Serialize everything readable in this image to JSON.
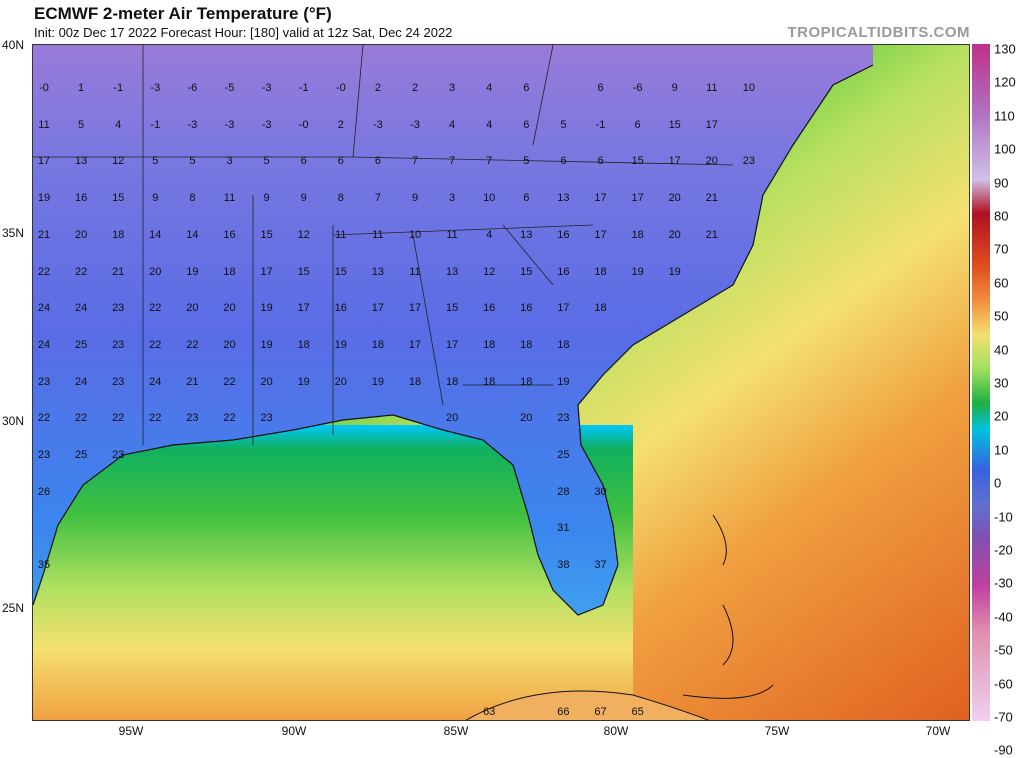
{
  "header": {
    "title": "ECMWF 2-meter Air Temperature (°F)",
    "subtitle": "Init: 00z Dec 17 2022   Forecast Hour: [180]   valid at 12z Sat, Dec 24 2022",
    "brand": "TROPICALTIDBITS.COM"
  },
  "axes": {
    "lat_labels": [
      "40N",
      "35N",
      "30N",
      "25N"
    ],
    "lon_labels": [
      "95W",
      "90W",
      "85W",
      "80W",
      "75W",
      "70W"
    ]
  },
  "colorbar": {
    "ticks": [
      "130",
      "120",
      "110",
      "100",
      "90",
      "80",
      "70",
      "60",
      "50",
      "40",
      "30",
      "20",
      "10",
      "0",
      "-10",
      "-20",
      "-30",
      "-40",
      "-50",
      "-60",
      "-70",
      "-90"
    ]
  },
  "temps": [
    {
      "t": "-0",
      "c": 0,
      "r": 0
    },
    {
      "t": "1",
      "c": 1,
      "r": 0
    },
    {
      "t": "-1",
      "c": 2,
      "r": 0
    },
    {
      "t": "-3",
      "c": 3,
      "r": 0
    },
    {
      "t": "-6",
      "c": 4,
      "r": 0
    },
    {
      "t": "-5",
      "c": 5,
      "r": 0
    },
    {
      "t": "-3",
      "c": 6,
      "r": 0
    },
    {
      "t": "-1",
      "c": 7,
      "r": 0
    },
    {
      "t": "-0",
      "c": 8,
      "r": 0
    },
    {
      "t": "2",
      "c": 9,
      "r": 0
    },
    {
      "t": "2",
      "c": 10,
      "r": 0
    },
    {
      "t": "3",
      "c": 11,
      "r": 0
    },
    {
      "t": "4",
      "c": 12,
      "r": 0
    },
    {
      "t": "6",
      "c": 13,
      "r": 0
    },
    {
      "t": "6",
      "c": 15,
      "r": 0
    },
    {
      "t": "-6",
      "c": 16,
      "r": 0
    },
    {
      "t": "9",
      "c": 17,
      "r": 0
    },
    {
      "t": "11",
      "c": 18,
      "r": 0
    },
    {
      "t": "10",
      "c": 19,
      "r": 0
    },
    {
      "t": "11",
      "c": 0,
      "r": 1
    },
    {
      "t": "5",
      "c": 1,
      "r": 1
    },
    {
      "t": "4",
      "c": 2,
      "r": 1
    },
    {
      "t": "-1",
      "c": 3,
      "r": 1
    },
    {
      "t": "-3",
      "c": 4,
      "r": 1
    },
    {
      "t": "-3",
      "c": 5,
      "r": 1
    },
    {
      "t": "-3",
      "c": 6,
      "r": 1
    },
    {
      "t": "-0",
      "c": 7,
      "r": 1
    },
    {
      "t": "2",
      "c": 8,
      "r": 1
    },
    {
      "t": "-3",
      "c": 9,
      "r": 1
    },
    {
      "t": "-3",
      "c": 10,
      "r": 1
    },
    {
      "t": "4",
      "c": 11,
      "r": 1
    },
    {
      "t": "4",
      "c": 12,
      "r": 1
    },
    {
      "t": "6",
      "c": 13,
      "r": 1
    },
    {
      "t": "5",
      "c": 14,
      "r": 1
    },
    {
      "t": "-1",
      "c": 15,
      "r": 1
    },
    {
      "t": "6",
      "c": 16,
      "r": 1
    },
    {
      "t": "15",
      "c": 17,
      "r": 1
    },
    {
      "t": "17",
      "c": 18,
      "r": 1
    },
    {
      "t": "17",
      "c": 0,
      "r": 2
    },
    {
      "t": "13",
      "c": 1,
      "r": 2
    },
    {
      "t": "12",
      "c": 2,
      "r": 2
    },
    {
      "t": "5",
      "c": 3,
      "r": 2
    },
    {
      "t": "5",
      "c": 4,
      "r": 2
    },
    {
      "t": "3",
      "c": 5,
      "r": 2
    },
    {
      "t": "5",
      "c": 6,
      "r": 2
    },
    {
      "t": "6",
      "c": 7,
      "r": 2
    },
    {
      "t": "6",
      "c": 8,
      "r": 2
    },
    {
      "t": "6",
      "c": 9,
      "r": 2
    },
    {
      "t": "7",
      "c": 10,
      "r": 2
    },
    {
      "t": "7",
      "c": 11,
      "r": 2
    },
    {
      "t": "7",
      "c": 12,
      "r": 2
    },
    {
      "t": "5",
      "c": 13,
      "r": 2
    },
    {
      "t": "6",
      "c": 14,
      "r": 2
    },
    {
      "t": "6",
      "c": 15,
      "r": 2
    },
    {
      "t": "15",
      "c": 16,
      "r": 2
    },
    {
      "t": "17",
      "c": 17,
      "r": 2
    },
    {
      "t": "20",
      "c": 18,
      "r": 2
    },
    {
      "t": "23",
      "c": 19,
      "r": 2
    },
    {
      "t": "19",
      "c": 0,
      "r": 3
    },
    {
      "t": "16",
      "c": 1,
      "r": 3
    },
    {
      "t": "15",
      "c": 2,
      "r": 3
    },
    {
      "t": "9",
      "c": 3,
      "r": 3
    },
    {
      "t": "8",
      "c": 4,
      "r": 3
    },
    {
      "t": "11",
      "c": 5,
      "r": 3
    },
    {
      "t": "9",
      "c": 6,
      "r": 3
    },
    {
      "t": "9",
      "c": 7,
      "r": 3
    },
    {
      "t": "8",
      "c": 8,
      "r": 3
    },
    {
      "t": "7",
      "c": 9,
      "r": 3
    },
    {
      "t": "9",
      "c": 10,
      "r": 3
    },
    {
      "t": "3",
      "c": 11,
      "r": 3
    },
    {
      "t": "10",
      "c": 12,
      "r": 3
    },
    {
      "t": "6",
      "c": 13,
      "r": 3
    },
    {
      "t": "13",
      "c": 14,
      "r": 3
    },
    {
      "t": "17",
      "c": 15,
      "r": 3
    },
    {
      "t": "17",
      "c": 16,
      "r": 3
    },
    {
      "t": "20",
      "c": 17,
      "r": 3
    },
    {
      "t": "21",
      "c": 18,
      "r": 3
    },
    {
      "t": "21",
      "c": 0,
      "r": 4
    },
    {
      "t": "20",
      "c": 1,
      "r": 4
    },
    {
      "t": "18",
      "c": 2,
      "r": 4
    },
    {
      "t": "14",
      "c": 3,
      "r": 4
    },
    {
      "t": "14",
      "c": 4,
      "r": 4
    },
    {
      "t": "16",
      "c": 5,
      "r": 4
    },
    {
      "t": "15",
      "c": 6,
      "r": 4
    },
    {
      "t": "12",
      "c": 7,
      "r": 4
    },
    {
      "t": "11",
      "c": 8,
      "r": 4
    },
    {
      "t": "11",
      "c": 9,
      "r": 4
    },
    {
      "t": "10",
      "c": 10,
      "r": 4
    },
    {
      "t": "11",
      "c": 11,
      "r": 4
    },
    {
      "t": "4",
      "c": 12,
      "r": 4
    },
    {
      "t": "13",
      "c": 13,
      "r": 4
    },
    {
      "t": "16",
      "c": 14,
      "r": 4
    },
    {
      "t": "17",
      "c": 15,
      "r": 4
    },
    {
      "t": "18",
      "c": 16,
      "r": 4
    },
    {
      "t": "20",
      "c": 17,
      "r": 4
    },
    {
      "t": "21",
      "c": 18,
      "r": 4
    },
    {
      "t": "22",
      "c": 0,
      "r": 5
    },
    {
      "t": "22",
      "c": 1,
      "r": 5
    },
    {
      "t": "21",
      "c": 2,
      "r": 5
    },
    {
      "t": "20",
      "c": 3,
      "r": 5
    },
    {
      "t": "19",
      "c": 4,
      "r": 5
    },
    {
      "t": "18",
      "c": 5,
      "r": 5
    },
    {
      "t": "17",
      "c": 6,
      "r": 5
    },
    {
      "t": "15",
      "c": 7,
      "r": 5
    },
    {
      "t": "15",
      "c": 8,
      "r": 5
    },
    {
      "t": "13",
      "c": 9,
      "r": 5
    },
    {
      "t": "11",
      "c": 10,
      "r": 5
    },
    {
      "t": "13",
      "c": 11,
      "r": 5
    },
    {
      "t": "12",
      "c": 12,
      "r": 5
    },
    {
      "t": "15",
      "c": 13,
      "r": 5
    },
    {
      "t": "16",
      "c": 14,
      "r": 5
    },
    {
      "t": "18",
      "c": 15,
      "r": 5
    },
    {
      "t": "19",
      "c": 16,
      "r": 5
    },
    {
      "t": "19",
      "c": 17,
      "r": 5
    },
    {
      "t": "24",
      "c": 0,
      "r": 6
    },
    {
      "t": "24",
      "c": 1,
      "r": 6
    },
    {
      "t": "23",
      "c": 2,
      "r": 6
    },
    {
      "t": "22",
      "c": 3,
      "r": 6
    },
    {
      "t": "20",
      "c": 4,
      "r": 6
    },
    {
      "t": "20",
      "c": 5,
      "r": 6
    },
    {
      "t": "19",
      "c": 6,
      "r": 6
    },
    {
      "t": "17",
      "c": 7,
      "r": 6
    },
    {
      "t": "16",
      "c": 8,
      "r": 6
    },
    {
      "t": "17",
      "c": 9,
      "r": 6
    },
    {
      "t": "17",
      "c": 10,
      "r": 6
    },
    {
      "t": "15",
      "c": 11,
      "r": 6
    },
    {
      "t": "16",
      "c": 12,
      "r": 6
    },
    {
      "t": "16",
      "c": 13,
      "r": 6
    },
    {
      "t": "17",
      "c": 14,
      "r": 6
    },
    {
      "t": "18",
      "c": 15,
      "r": 6
    },
    {
      "t": "24",
      "c": 0,
      "r": 7
    },
    {
      "t": "25",
      "c": 1,
      "r": 7
    },
    {
      "t": "23",
      "c": 2,
      "r": 7
    },
    {
      "t": "22",
      "c": 3,
      "r": 7
    },
    {
      "t": "22",
      "c": 4,
      "r": 7
    },
    {
      "t": "20",
      "c": 5,
      "r": 7
    },
    {
      "t": "19",
      "c": 6,
      "r": 7
    },
    {
      "t": "18",
      "c": 7,
      "r": 7
    },
    {
      "t": "19",
      "c": 8,
      "r": 7
    },
    {
      "t": "18",
      "c": 9,
      "r": 7
    },
    {
      "t": "17",
      "c": 10,
      "r": 7
    },
    {
      "t": "17",
      "c": 11,
      "r": 7
    },
    {
      "t": "18",
      "c": 12,
      "r": 7
    },
    {
      "t": "18",
      "c": 13,
      "r": 7
    },
    {
      "t": "18",
      "c": 14,
      "r": 7
    },
    {
      "t": "23",
      "c": 0,
      "r": 8
    },
    {
      "t": "24",
      "c": 1,
      "r": 8
    },
    {
      "t": "23",
      "c": 2,
      "r": 8
    },
    {
      "t": "24",
      "c": 3,
      "r": 8
    },
    {
      "t": "21",
      "c": 4,
      "r": 8
    },
    {
      "t": "22",
      "c": 5,
      "r": 8
    },
    {
      "t": "20",
      "c": 6,
      "r": 8
    },
    {
      "t": "19",
      "c": 7,
      "r": 8
    },
    {
      "t": "20",
      "c": 8,
      "r": 8
    },
    {
      "t": "19",
      "c": 9,
      "r": 8
    },
    {
      "t": "18",
      "c": 10,
      "r": 8
    },
    {
      "t": "18",
      "c": 11,
      "r": 8
    },
    {
      "t": "18",
      "c": 12,
      "r": 8
    },
    {
      "t": "18",
      "c": 13,
      "r": 8
    },
    {
      "t": "19",
      "c": 14,
      "r": 8
    },
    {
      "t": "22",
      "c": 0,
      "r": 9
    },
    {
      "t": "22",
      "c": 1,
      "r": 9
    },
    {
      "t": "22",
      "c": 2,
      "r": 9
    },
    {
      "t": "22",
      "c": 3,
      "r": 9
    },
    {
      "t": "23",
      "c": 4,
      "r": 9
    },
    {
      "t": "22",
      "c": 5,
      "r": 9
    },
    {
      "t": "23",
      "c": 6,
      "r": 9
    },
    {
      "t": "20",
      "c": 11,
      "r": 9
    },
    {
      "t": "20",
      "c": 13,
      "r": 9
    },
    {
      "t": "23",
      "c": 14,
      "r": 9
    },
    {
      "t": "23",
      "c": 0,
      "r": 10
    },
    {
      "t": "25",
      "c": 1,
      "r": 10
    },
    {
      "t": "23",
      "c": 2,
      "r": 10
    },
    {
      "t": "25",
      "c": 14,
      "r": 10
    },
    {
      "t": "26",
      "c": 0,
      "r": 11
    },
    {
      "t": "28",
      "c": 14,
      "r": 11
    },
    {
      "t": "30",
      "c": 15,
      "r": 11
    },
    {
      "t": "31",
      "c": 14,
      "r": 12
    },
    {
      "t": "35",
      "c": 0,
      "r": 13
    },
    {
      "t": "38",
      "c": 14,
      "r": 13
    },
    {
      "t": "37",
      "c": 15,
      "r": 13
    },
    {
      "t": "63",
      "c": 12,
      "r": 17
    },
    {
      "t": "66",
      "c": 14,
      "r": 17
    },
    {
      "t": "67",
      "c": 15,
      "r": 17
    },
    {
      "t": "65",
      "c": 16,
      "r": 17
    }
  ]
}
